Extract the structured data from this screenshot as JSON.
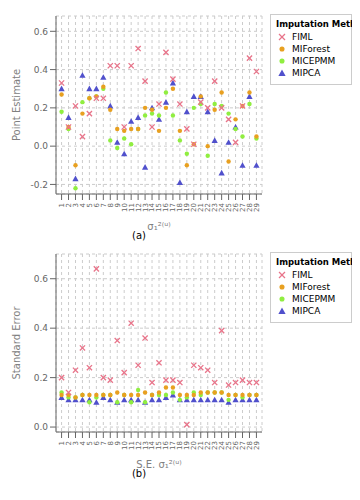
{
  "chart_data": [
    {
      "type": "scatter",
      "x": [
        1,
        2,
        3,
        4,
        5,
        6,
        7,
        8,
        9,
        10,
        11,
        12,
        13,
        14,
        15,
        16,
        17,
        18,
        19,
        20,
        21,
        22,
        23,
        24,
        25,
        26,
        27,
        28,
        29
      ],
      "xlim": [
        0.2,
        29.8
      ],
      "xticks": [
        1,
        2,
        3,
        4,
        5,
        6,
        7,
        8,
        9,
        10,
        11,
        12,
        13,
        14,
        15,
        16,
        17,
        18,
        19,
        20,
        21,
        22,
        23,
        24,
        25,
        26,
        27,
        28,
        29
      ],
      "xlabel": "σ₁²⁽ᵘ⁾",
      "ylabel": "Point Estimate",
      "ylim": [
        -0.25,
        0.68
      ],
      "yticks": [
        -0.2,
        {
          "value": 0,
          "label": "0.0"
        },
        0.2,
        0.4,
        0.6
      ],
      "grid": true,
      "legend": "right",
      "legend_title": "Imputation Method",
      "annotations": [
        "(a)"
      ],
      "series": [
        {
          "name": "FIML",
          "color": "#E8748A",
          "marker": "x",
          "values": [
            0.33,
            0.1,
            0.21,
            0.05,
            0.17,
            0.25,
            0.25,
            0.42,
            0.42,
            0.1,
            0.42,
            0.51,
            0.34,
            0.1,
            0.22,
            0.49,
            0.35,
            0.22,
            0.09,
            0.01,
            0.23,
            0.2,
            0.34,
            0.2,
            0.14,
            0.02,
            0.21,
            0.46,
            0.39
          ]
        },
        {
          "name": "MIForest",
          "color": "#E8A020",
          "marker": "o",
          "values": [
            0.27,
            0.1,
            -0.1,
            0.17,
            0.25,
            0.26,
            0.31,
            0.19,
            0.09,
            0.08,
            0.09,
            0.09,
            0.2,
            0.19,
            0.08,
            0.2,
            0.3,
            0.08,
            -0.1,
            0.01,
            0.26,
            0.0,
            0.19,
            0.28,
            -0.08,
            0.14,
            0.21,
            0.28,
            0.05
          ]
        },
        {
          "name": "MICEPMM",
          "color": "#90EE40",
          "marker": "o",
          "values": [
            0.18,
            0.09,
            -0.22,
            0.23,
            0.25,
            0.26,
            0.3,
            0.03,
            -0.01,
            0.04,
            0.01,
            0.09,
            0.16,
            0.17,
            0.16,
            0.28,
            0.16,
            0.03,
            -0.04,
            0.2,
            0.22,
            -0.05,
            0.22,
            0.21,
            0.17,
            0.09,
            0.05,
            0.22,
            0.04
          ]
        },
        {
          "name": "MIPCA",
          "color": "#5050CC",
          "marker": "^",
          "values": [
            0.3,
            0.15,
            -0.17,
            0.37,
            0.3,
            0.3,
            0.36,
            0.21,
            0.02,
            -0.04,
            0.13,
            0.15,
            -0.11,
            0.2,
            0.14,
            0.23,
            0.33,
            -0.19,
            0.18,
            0.26,
            0.26,
            0.18,
            0.03,
            -0.14,
            0.02,
            0.1,
            -0.1,
            0.26,
            -0.1
          ]
        }
      ]
    },
    {
      "type": "scatter",
      "x": [
        1,
        2,
        3,
        4,
        5,
        6,
        7,
        8,
        9,
        10,
        11,
        12,
        13,
        14,
        15,
        16,
        17,
        18,
        19,
        20,
        21,
        22,
        23,
        24,
        25,
        26,
        27,
        28,
        29
      ],
      "xlim": [
        0.2,
        29.8
      ],
      "xticks": [
        1,
        2,
        3,
        4,
        5,
        6,
        7,
        8,
        9,
        10,
        11,
        12,
        13,
        14,
        15,
        16,
        17,
        18,
        19,
        20,
        21,
        22,
        23,
        24,
        25,
        26,
        27,
        28,
        29
      ],
      "xlabel": "S.E. σ₁²⁽ᵘ⁾",
      "ylabel": "Standard Error",
      "ylim": [
        -0.02,
        0.7
      ],
      "yticks": [
        {
          "value": 0,
          "label": "0.0"
        },
        0.2,
        0.4,
        0.6
      ],
      "grid": true,
      "legend": "right",
      "legend_title": "Imputation Method",
      "annotations": [
        "(b)"
      ],
      "series": [
        {
          "name": "FIML",
          "color": "#E8748A",
          "marker": "x",
          "values": [
            0.2,
            0.14,
            0.23,
            0.32,
            0.24,
            0.64,
            0.2,
            0.19,
            0.35,
            0.22,
            0.42,
            0.25,
            0.36,
            0.18,
            0.26,
            0.19,
            0.19,
            0.18,
            0.01,
            0.25,
            0.24,
            0.23,
            0.18,
            0.39,
            0.17,
            0.18,
            0.19,
            0.18,
            0.18
          ]
        },
        {
          "name": "MIForest",
          "color": "#E8A020",
          "marker": "o",
          "values": [
            0.13,
            0.13,
            0.12,
            0.13,
            0.13,
            0.13,
            0.13,
            0.13,
            0.14,
            0.13,
            0.13,
            0.13,
            0.14,
            0.13,
            0.14,
            0.16,
            0.16,
            0.13,
            0.13,
            0.13,
            0.14,
            0.14,
            0.14,
            0.14,
            0.13,
            0.13,
            0.13,
            0.13,
            0.13
          ]
        },
        {
          "name": "MICEPMM",
          "color": "#90EE40",
          "marker": "o",
          "values": [
            0.14,
            0.12,
            0.12,
            0.13,
            0.1,
            0.12,
            0.13,
            0.13,
            0.1,
            0.13,
            0.1,
            0.15,
            0.1,
            0.13,
            0.13,
            0.13,
            0.14,
            0.11,
            0.12,
            0.14,
            0.13,
            0.14,
            0.14,
            0.14,
            0.11,
            0.13,
            0.12,
            0.13,
            0.13
          ]
        },
        {
          "name": "MIPCA",
          "color": "#5050CC",
          "marker": "^",
          "values": [
            0.12,
            0.11,
            0.11,
            0.11,
            0.11,
            0.1,
            0.12,
            0.11,
            0.1,
            0.11,
            0.11,
            0.11,
            0.1,
            0.11,
            0.11,
            0.12,
            0.13,
            0.11,
            0.11,
            0.11,
            0.11,
            0.11,
            0.11,
            0.11,
            0.1,
            0.11,
            0.11,
            0.11,
            0.11
          ]
        }
      ]
    }
  ]
}
